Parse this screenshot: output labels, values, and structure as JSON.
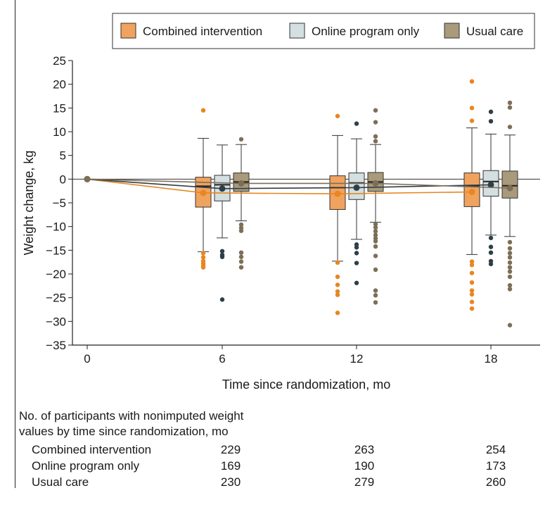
{
  "chart_data": {
    "type": "box",
    "title": "",
    "xlabel": "Time since randomization, mo",
    "ylabel": "Weight change, kg",
    "ylim": [
      -35,
      25
    ],
    "yticks": [
      25,
      20,
      15,
      10,
      5,
      0,
      -5,
      -10,
      -15,
      -20,
      -25,
      -30,
      -35
    ],
    "xticks": [
      0,
      6,
      12,
      18
    ],
    "legend": {
      "position": "top-right",
      "entries": [
        {
          "name": "Combined intervention",
          "color": "#f0a35e"
        },
        {
          "name": "Online program only",
          "color": "#d3dfe0"
        },
        {
          "name": "Usual care",
          "color": "#a89a7a"
        }
      ]
    },
    "mean_lines": [
      {
        "series": "Combined intervention",
        "x": [
          0,
          6,
          12,
          18
        ],
        "y": [
          0,
          -2.9,
          -3.1,
          -2.7
        ],
        "color": "#e8861f"
      },
      {
        "series": "Online program only",
        "x": [
          0,
          6,
          12,
          18
        ],
        "y": [
          0,
          -2.0,
          -1.8,
          -1.2
        ],
        "color": "#2f3f48"
      },
      {
        "series": "Usual care",
        "x": [
          0,
          6,
          12,
          18
        ],
        "y": [
          0,
          -0.9,
          -0.9,
          -1.9
        ],
        "color": "#7d6e57"
      }
    ],
    "boxes": [
      {
        "series": "Combined intervention",
        "time": 6,
        "q1": -5.9,
        "median": -1.5,
        "q3": 0.4,
        "whisker_low": -15.3,
        "whisker_high": 8.6,
        "mean": -2.9,
        "outliers": [
          14.5,
          -15.6,
          -16.5,
          -17.3,
          -17.8,
          -18.2,
          -18.6
        ]
      },
      {
        "series": "Online program only",
        "time": 6,
        "q1": -4.6,
        "median": -1.2,
        "q3": 0.8,
        "whisker_low": -12.4,
        "whisker_high": 7.2,
        "mean": -2.0,
        "outliers": [
          -15.2,
          -16.0,
          -16.4,
          -25.4
        ]
      },
      {
        "series": "Usual care",
        "time": 6,
        "q1": -2.6,
        "median": -0.6,
        "q3": 1.3,
        "whisker_low": -8.8,
        "whisker_high": 7.3,
        "mean": -0.9,
        "outliers": [
          8.4,
          -9.6,
          -10.3,
          -10.9,
          -15.5,
          -16.4,
          -17.4,
          -18.6
        ]
      },
      {
        "series": "Combined intervention",
        "time": 12,
        "q1": -6.4,
        "median": -1.8,
        "q3": 0.7,
        "whisker_low": -17.3,
        "whisker_high": 9.2,
        "mean": -3.1,
        "outliers": [
          13.3,
          -17.6,
          -20.6,
          -22.3,
          -23.7,
          -24.4,
          -28.2
        ]
      },
      {
        "series": "Online program only",
        "time": 12,
        "q1": -4.3,
        "median": -0.8,
        "q3": 1.3,
        "whisker_low": -12.7,
        "whisker_high": 8.5,
        "mean": -1.8,
        "outliers": [
          11.7,
          -13.8,
          -14.4,
          -15.6,
          -17.7,
          -21.9
        ]
      },
      {
        "series": "Usual care",
        "time": 12,
        "q1": -2.6,
        "median": -0.6,
        "q3": 1.4,
        "whisker_low": -9.1,
        "whisker_high": 7.3,
        "mean": -0.9,
        "outliers": [
          14.5,
          12.0,
          9.0,
          8.0,
          -9.5,
          -10.2,
          -11.0,
          -11.8,
          -12.5,
          -13.1,
          -14.2,
          -16.2,
          -19.1,
          -23.5,
          -24.5,
          -26.0
        ]
      },
      {
        "series": "Combined intervention",
        "time": 18,
        "q1": -5.8,
        "median": -1.4,
        "q3": 1.3,
        "whisker_low": -15.9,
        "whisker_high": 10.8,
        "mean": -2.7,
        "outliers": [
          20.6,
          15.0,
          12.3,
          -17.4,
          -18.1,
          -19.8,
          -21.8,
          -23.5,
          -24.3,
          -25.9,
          -27.3
        ]
      },
      {
        "series": "Online program only",
        "time": 18,
        "q1": -3.6,
        "median": -0.5,
        "q3": 1.8,
        "whisker_low": -11.8,
        "whisker_high": 9.5,
        "mean": -1.2,
        "outliers": [
          14.2,
          12.2,
          -12.4,
          -14.3,
          -15.5,
          -17.3,
          -17.9
        ]
      },
      {
        "series": "Usual care",
        "time": 18,
        "q1": -4.0,
        "median": -1.4,
        "q3": 1.7,
        "whisker_low": -12.1,
        "whisker_high": 9.3,
        "mean": -1.9,
        "outliers": [
          16.1,
          15.1,
          11.0,
          -13.3,
          -14.6,
          -15.6,
          -16.5,
          -17.6,
          -18.6,
          -19.5,
          -20.6,
          -22.4,
          -23.2,
          -30.8
        ]
      }
    ],
    "participants_table": {
      "title_line1": "No. of participants with nonimputed weight",
      "title_line2": "values by time since randomization, mo",
      "rows": [
        {
          "label": "Combined intervention",
          "values": [
            "229",
            "263",
            "254"
          ]
        },
        {
          "label": "Online program only",
          "values": [
            "169",
            "190",
            "173"
          ]
        },
        {
          "label": "Usual care",
          "values": [
            "230",
            "279",
            "260"
          ]
        }
      ]
    }
  }
}
